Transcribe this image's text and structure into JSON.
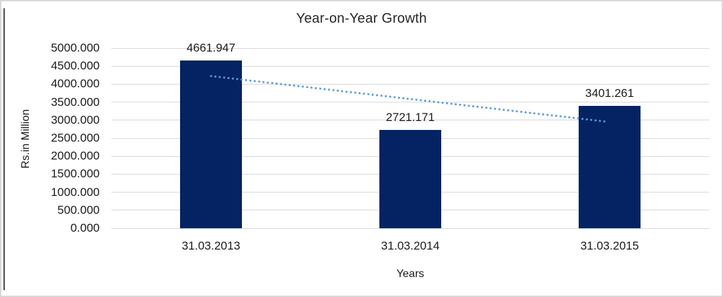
{
  "window": {
    "background": "#ffffff",
    "frame_border_color": "#d9d9d9",
    "left_accent_color": "#4d4d4d"
  },
  "chart_data": {
    "type": "bar",
    "title": "Year-on-Year Growth",
    "xlabel": "Years",
    "ylabel": "Rs.in Million",
    "categories": [
      "31.03.2013",
      "31.03.2014",
      "31.03.2015"
    ],
    "values": [
      4661.947,
      2721.171,
      3401.261
    ],
    "value_labels": [
      "4661.947",
      "2721.171",
      "3401.261"
    ],
    "ylim": [
      0,
      5000
    ],
    "ytick_step": 500,
    "ytick_labels": [
      "0.000",
      "500.000",
      "1000.000",
      "1500.000",
      "2000.000",
      "2500.000",
      "3000.000",
      "3500.000",
      "4000.000",
      "4500.000",
      "5000.000"
    ],
    "grid": true,
    "legend": "none",
    "bar_color": "#052362",
    "gridline_color": "#d9d9d9",
    "text_color": "#1a1a1a",
    "trendline": {
      "type": "linear",
      "style": "dotted",
      "color": "#5b9bd5",
      "start_value": 4225.136,
      "end_value": 2964.45
    }
  }
}
